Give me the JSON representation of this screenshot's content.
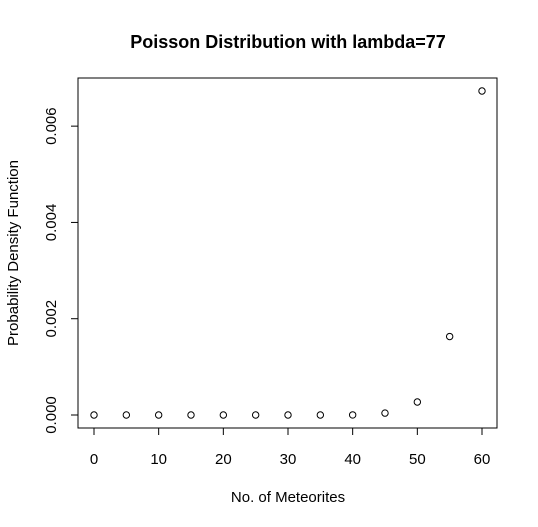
{
  "chart_data": {
    "type": "scatter",
    "title": "Poisson Distribution with lambda=77",
    "xlabel": "No. of Meteorites",
    "ylabel": "Probability Density Function",
    "x": [
      0,
      5,
      10,
      15,
      20,
      25,
      30,
      35,
      40,
      45,
      50,
      55,
      60
    ],
    "y": [
      0.0,
      0.0,
      0.0,
      0.0,
      0.0,
      0.0,
      0.0,
      0.0,
      1.5e-06,
      4e-05,
      0.00027,
      0.00163,
      0.00673
    ],
    "xlim": [
      0,
      60
    ],
    "ylim": [
      0,
      0.00673
    ],
    "xticks": [
      0,
      10,
      20,
      30,
      40,
      50,
      60
    ],
    "yticks": [
      0.0,
      0.002,
      0.004,
      0.006
    ],
    "xtick_labels": [
      "0",
      "10",
      "20",
      "30",
      "40",
      "50",
      "60"
    ],
    "ytick_labels": [
      "0.000",
      "0.002",
      "0.004",
      "0.006"
    ],
    "marker": "open-circle",
    "grid": false,
    "legend": "none"
  }
}
